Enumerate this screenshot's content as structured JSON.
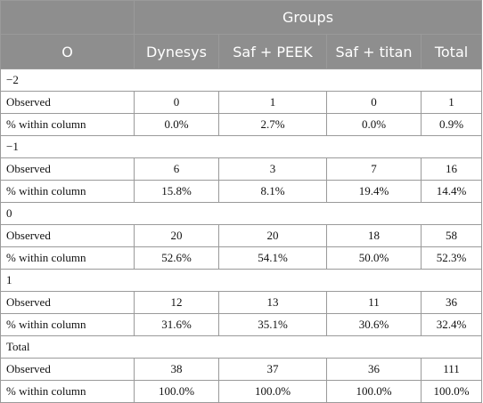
{
  "header": {
    "groups_label": "Groups",
    "row_label": "O",
    "columns": [
      "Dynesys",
      "Saf + PEEK",
      "Saf + titan",
      "Total"
    ]
  },
  "sections": [
    {
      "label": "−2",
      "rows": [
        {
          "label": "Observed",
          "values": [
            "0",
            "1",
            "0",
            "1"
          ]
        },
        {
          "label": "% within column",
          "values": [
            "0.0%",
            "2.7%",
            "0.0%",
            "0.9%"
          ]
        }
      ]
    },
    {
      "label": "−1",
      "rows": [
        {
          "label": "Observed",
          "values": [
            "6",
            "3",
            "7",
            "16"
          ]
        },
        {
          "label": "% within column",
          "values": [
            "15.8%",
            "8.1%",
            "19.4%",
            "14.4%"
          ]
        }
      ]
    },
    {
      "label": "0",
      "rows": [
        {
          "label": "Observed",
          "values": [
            "20",
            "20",
            "18",
            "58"
          ]
        },
        {
          "label": "% within column",
          "values": [
            "52.6%",
            "54.1%",
            "50.0%",
            "52.3%"
          ]
        }
      ]
    },
    {
      "label": "1",
      "rows": [
        {
          "label": "Observed",
          "values": [
            "12",
            "13",
            "11",
            "36"
          ]
        },
        {
          "label": "% within column",
          "values": [
            "31.6%",
            "35.1%",
            "30.6%",
            "32.4%"
          ]
        }
      ]
    },
    {
      "label": "Total",
      "rows": [
        {
          "label": "Observed",
          "values": [
            "38",
            "37",
            "36",
            "111"
          ]
        },
        {
          "label": "% within column",
          "values": [
            "100.0%",
            "100.0%",
            "100.0%",
            "100.0%"
          ]
        }
      ]
    }
  ]
}
